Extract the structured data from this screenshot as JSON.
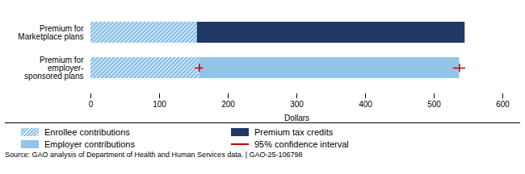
{
  "chart_data": {
    "type": "bar",
    "orientation": "horizontal",
    "stacked": true,
    "categories": [
      "Premium for\nMarketplace plans",
      "Premium for\nemployer-\nsponsored plans"
    ],
    "series": [
      {
        "name": "Enrollee contributions",
        "color": "#92C5E8",
        "values": [
          155,
          158
        ]
      },
      {
        "name": "Premium tax credits",
        "color": "#1F3864",
        "values": [
          390,
          null
        ]
      },
      {
        "name": "Employer contributions",
        "color": "#92C5E8",
        "values": [
          null,
          379
        ]
      }
    ],
    "error_bars": {
      "name": "95% confidence interval",
      "color": "#C00000",
      "points": [
        {
          "category": "Premium for\nemployer-\nsponsored plans",
          "value": 158,
          "error": 6
        },
        {
          "category": "Premium for\nemployer-\nsponsored plans",
          "value": 537,
          "error": 9
        }
      ]
    },
    "xlabel": "Dollars",
    "xlim": [
      0,
      600
    ],
    "xticks": [
      0,
      100,
      200,
      300,
      400,
      500,
      600
    ],
    "grid": false,
    "legend": "bottom",
    "caption": "Source: GAO analysis of Department of Health and Human Services data.  |  GAO-25-106798"
  }
}
